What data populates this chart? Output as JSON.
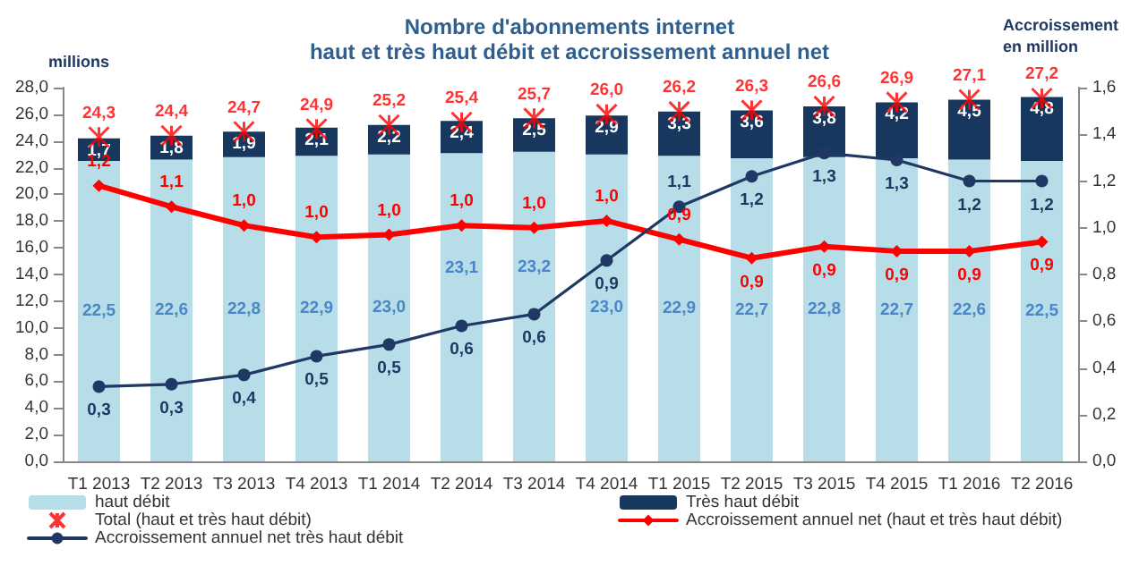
{
  "chart_data": {
    "type": "bar",
    "title": "Nombre d'abonnements internet",
    "subtitle": "haut et très haut débit et accroissement annuel net",
    "ylabel": "millions",
    "y2label": "Accroissement en million",
    "categories": [
      "T1 2013",
      "T2 2013",
      "T3 2013",
      "T4 2013",
      "T1 2014",
      "T2 2014",
      "T3 2014",
      "T4 2014",
      "T1 2015",
      "T2 2015",
      "T3 2015",
      "T4 2015",
      "T1 2016",
      "T2 2016"
    ],
    "series": [
      {
        "name": "haut débit",
        "color": "#b7dde8",
        "values": [
          22.5,
          22.6,
          22.8,
          22.9,
          23.0,
          23.1,
          23.2,
          23.0,
          22.9,
          22.7,
          22.8,
          22.7,
          22.6,
          22.5
        ],
        "value_labels": [
          "22,5",
          "22,6",
          "22,8",
          "22,9",
          "23,0",
          "23,1",
          "23,2",
          "23,0",
          "22,9",
          "22,7",
          "22,8",
          "22,7",
          "22,6",
          "22,5"
        ]
      },
      {
        "name": "Très haut débit",
        "color": "#17375e",
        "values": [
          1.7,
          1.8,
          1.9,
          2.1,
          2.2,
          2.4,
          2.5,
          2.9,
          3.3,
          3.6,
          3.8,
          4.2,
          4.5,
          4.8
        ],
        "value_labels": [
          "1,7",
          "1,8",
          "1,9",
          "2,1",
          "2,2",
          "2,4",
          "2,5",
          "2,9",
          "3,3",
          "3,6",
          "3,8",
          "4,2",
          "4,5",
          "4,8"
        ]
      },
      {
        "name": "Total (haut et très haut débit)",
        "type": "scatter",
        "marker": "cross",
        "color": "#ff0000",
        "x": [
          "T1 2013",
          "T2 2013",
          "T3 2013",
          "T4 2013",
          "T1 2014",
          "T2 2014",
          "T3 2014",
          "T4 2014",
          "T1 2015",
          "T2 2015",
          "T3 2015",
          "T4 2015",
          "T1 2016",
          "T2 2016"
        ],
        "values": [
          24.3,
          24.4,
          24.7,
          24.9,
          25.2,
          25.4,
          25.7,
          26.0,
          26.2,
          26.3,
          26.6,
          26.9,
          27.1,
          27.2
        ],
        "value_labels": [
          "24,3",
          "24,4",
          "24,7",
          "24,9",
          "25,2",
          "25,4",
          "25,7",
          "26,0",
          "26,2",
          "26,3",
          "26,6",
          "26,9",
          "27,1",
          "27,2"
        ]
      },
      {
        "name": "Accroissement annuel net (haut et très haut débit)",
        "type": "line",
        "axis": "y2",
        "marker": "diamond",
        "color": "#ff0000",
        "values": [
          1.18,
          1.09,
          1.01,
          0.96,
          0.97,
          1.01,
          1.0,
          1.03,
          0.95,
          0.87,
          0.92,
          0.9,
          0.9,
          0.94
        ],
        "value_labels": [
          "1,2",
          "1,1",
          "1,0",
          "1,0",
          "1,0",
          "1,0",
          "1,0",
          "1,0",
          "0,9",
          "0,9",
          "0,9",
          "0,9",
          "0,9",
          "0,9"
        ]
      },
      {
        "name": "Accroissement annuel net très haut débit",
        "type": "line",
        "axis": "y2",
        "marker": "circle",
        "color": "#1f3864",
        "values": [
          0.32,
          0.33,
          0.37,
          0.45,
          0.5,
          0.58,
          0.63,
          0.86,
          1.09,
          1.22,
          1.32,
          1.29,
          1.2,
          1.2
        ],
        "value_labels": [
          "0,3",
          "0,3",
          "0,4",
          "0,5",
          "0,5",
          "0,6",
          "0,6",
          "0,9",
          "1,1",
          "1,2",
          "1,3",
          "1,3",
          "1,2",
          "1,2"
        ]
      }
    ],
    "stacked": true,
    "legend": "bottom",
    "line_style": "solid",
    "ylim": [
      0,
      28
    ],
    "yticks": [
      {
        "value": 0,
        "label": "0,0"
      },
      {
        "value": 2,
        "label": "2,0"
      },
      {
        "value": 4,
        "label": "4,0"
      },
      {
        "value": 6,
        "label": "6,0"
      },
      {
        "value": 8,
        "label": "8,0"
      },
      {
        "value": 10,
        "label": "10,0"
      },
      {
        "value": 12,
        "label": "12,0"
      },
      {
        "value": 14,
        "label": "14,0"
      },
      {
        "value": 16,
        "label": "16,0"
      },
      {
        "value": 18,
        "label": "18,0"
      },
      {
        "value": 20,
        "label": "20,0"
      },
      {
        "value": 22,
        "label": "22,0"
      },
      {
        "value": 24,
        "label": "24,0"
      },
      {
        "value": 26,
        "label": "26,0"
      },
      {
        "value": 28,
        "label": "28,0"
      }
    ],
    "y2lim": [
      0,
      1.6
    ],
    "y2ticks": [
      {
        "value": 0,
        "label": "0,0"
      },
      {
        "value": 0.2,
        "label": "0,2"
      },
      {
        "value": 0.4,
        "label": "0,4"
      },
      {
        "value": 0.6,
        "label": "0,6"
      },
      {
        "value": 0.8,
        "label": "0,8"
      },
      {
        "value": 1.0,
        "label": "1,0"
      },
      {
        "value": 1.2,
        "label": "1,2"
      },
      {
        "value": 1.4,
        "label": "1,4"
      },
      {
        "value": 1.6,
        "label": "1,6"
      }
    ]
  }
}
